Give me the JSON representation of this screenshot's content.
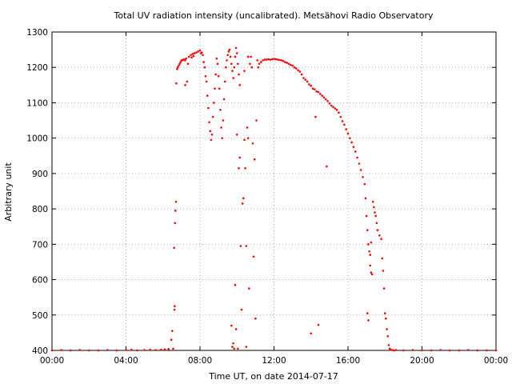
{
  "chart_data": {
    "type": "scatter",
    "title": "Total UV radiation intensity (uncalibrated). Metsähovi Radio Observatory",
    "xlabel": "Time UT, on date 2014-07-17",
    "ylabel": "Arbitrary unit",
    "xlim": [
      0,
      24
    ],
    "ylim": [
      400,
      1300
    ],
    "grid": true,
    "marker_color": "#ff0000",
    "x_ticks": [
      {
        "value": 0,
        "label": "00:00"
      },
      {
        "value": 4,
        "label": "04:00"
      },
      {
        "value": 8,
        "label": "08:00"
      },
      {
        "value": 12,
        "label": "12:00"
      },
      {
        "value": 16,
        "label": "16:00"
      },
      {
        "value": 20,
        "label": "20:00"
      },
      {
        "value": 24,
        "label": "00:00"
      }
    ],
    "y_ticks": [
      {
        "value": 400,
        "label": "400"
      },
      {
        "value": 500,
        "label": "500"
      },
      {
        "value": 600,
        "label": "600"
      },
      {
        "value": 700,
        "label": "700"
      },
      {
        "value": 800,
        "label": "800"
      },
      {
        "value": 900,
        "label": "900"
      },
      {
        "value": 1000,
        "label": "1000"
      },
      {
        "value": 1100,
        "label": "1100"
      },
      {
        "value": 1200,
        "label": "1200"
      },
      {
        "value": 1300,
        "label": "1300"
      }
    ],
    "x_unit": "hours UT",
    "points": [
      [
        0.0,
        400
      ],
      [
        0.5,
        401
      ],
      [
        1.0,
        400
      ],
      [
        1.5,
        401
      ],
      [
        2.0,
        400
      ],
      [
        2.5,
        400
      ],
      [
        3.0,
        401
      ],
      [
        3.5,
        400
      ],
      [
        4.0,
        401
      ],
      [
        4.3,
        402
      ],
      [
        4.6,
        400
      ],
      [
        5.0,
        401
      ],
      [
        5.3,
        402
      ],
      [
        5.6,
        401
      ],
      [
        5.9,
        402
      ],
      [
        6.1,
        403
      ],
      [
        6.3,
        404
      ],
      [
        6.45,
        430
      ],
      [
        6.5,
        455
      ],
      [
        6.55,
        405
      ],
      [
        6.6,
        690
      ],
      [
        6.65,
        760
      ],
      [
        6.67,
        795
      ],
      [
        6.7,
        820
      ],
      [
        6.62,
        515
      ],
      [
        6.63,
        525
      ],
      [
        6.72,
        1155
      ],
      [
        6.76,
        1195
      ],
      [
        6.8,
        1200
      ],
      [
        6.85,
        1205
      ],
      [
        6.9,
        1210
      ],
      [
        6.95,
        1215
      ],
      [
        7.0,
        1220
      ],
      [
        7.05,
        1220
      ],
      [
        7.1,
        1222
      ],
      [
        7.15,
        1222
      ],
      [
        7.2,
        1220
      ],
      [
        7.25,
        1225
      ],
      [
        7.3,
        1160
      ],
      [
        7.2,
        1150
      ],
      [
        7.35,
        1210
      ],
      [
        7.4,
        1230
      ],
      [
        7.5,
        1235
      ],
      [
        7.55,
        1228
      ],
      [
        7.6,
        1238
      ],
      [
        7.65,
        1232
      ],
      [
        7.7,
        1240
      ],
      [
        7.8,
        1242
      ],
      [
        7.9,
        1245
      ],
      [
        8.0,
        1248
      ],
      [
        8.05,
        1240
      ],
      [
        8.1,
        1242
      ],
      [
        8.15,
        1235
      ],
      [
        8.2,
        1215
      ],
      [
        8.25,
        1200
      ],
      [
        8.3,
        1175
      ],
      [
        8.35,
        1160
      ],
      [
        8.4,
        1120
      ],
      [
        8.45,
        1085
      ],
      [
        8.5,
        1045
      ],
      [
        8.55,
        1020
      ],
      [
        8.6,
        995
      ],
      [
        8.65,
        1010
      ],
      [
        8.7,
        1060
      ],
      [
        8.75,
        1100
      ],
      [
        8.8,
        1140
      ],
      [
        8.85,
        1180
      ],
      [
        8.9,
        1225
      ],
      [
        8.95,
        1210
      ],
      [
        9.0,
        1175
      ],
      [
        9.05,
        1140
      ],
      [
        9.1,
        1080
      ],
      [
        9.15,
        1030
      ],
      [
        9.2,
        1000
      ],
      [
        9.25,
        1050
      ],
      [
        9.3,
        1110
      ],
      [
        9.35,
        1160
      ],
      [
        9.4,
        1200
      ],
      [
        9.45,
        1220
      ],
      [
        9.5,
        1235
      ],
      [
        9.55,
        1245
      ],
      [
        9.6,
        1250
      ],
      [
        9.65,
        1230
      ],
      [
        9.7,
        1210
      ],
      [
        9.75,
        1190
      ],
      [
        9.8,
        1170
      ],
      [
        9.85,
        1200
      ],
      [
        9.9,
        1230
      ],
      [
        9.95,
        1255
      ],
      [
        10.0,
        1240
      ],
      [
        10.05,
        1210
      ],
      [
        10.1,
        1180
      ],
      [
        10.15,
        1150
      ],
      [
        9.7,
        470
      ],
      [
        9.75,
        410
      ],
      [
        9.8,
        420
      ],
      [
        9.85,
        405
      ],
      [
        9.9,
        585
      ],
      [
        9.95,
        460
      ],
      [
        10.0,
        1010
      ],
      [
        10.05,
        405
      ],
      [
        10.1,
        915
      ],
      [
        10.15,
        945
      ],
      [
        10.2,
        695
      ],
      [
        10.25,
        515
      ],
      [
        10.3,
        815
      ],
      [
        10.35,
        830
      ],
      [
        10.4,
        995
      ],
      [
        10.45,
        915
      ],
      [
        10.5,
        410
      ],
      [
        10.55,
        1030
      ],
      [
        10.6,
        1000
      ],
      [
        10.65,
        575
      ],
      [
        10.7,
        1210
      ],
      [
        10.75,
        1230
      ],
      [
        10.8,
        1200
      ],
      [
        10.85,
        985
      ],
      [
        10.9,
        665
      ],
      [
        10.95,
        940
      ],
      [
        11.0,
        490
      ],
      [
        11.05,
        1050
      ],
      [
        11.1,
        1220
      ],
      [
        11.15,
        1200
      ],
      [
        10.5,
        695
      ],
      [
        10.6,
        1230
      ],
      [
        10.4,
        1190
      ],
      [
        11.2,
        1210
      ],
      [
        11.3,
        1215
      ],
      [
        11.4,
        1220
      ],
      [
        11.5,
        1222
      ],
      [
        11.6,
        1222
      ],
      [
        11.7,
        1223
      ],
      [
        11.8,
        1222
      ],
      [
        11.9,
        1223
      ],
      [
        12.0,
        1224
      ],
      [
        12.1,
        1223
      ],
      [
        12.2,
        1222
      ],
      [
        12.3,
        1221
      ],
      [
        12.4,
        1220
      ],
      [
        12.5,
        1218
      ],
      [
        12.6,
        1215
      ],
      [
        12.7,
        1213
      ],
      [
        12.8,
        1210
      ],
      [
        12.9,
        1207
      ],
      [
        13.0,
        1205
      ],
      [
        13.1,
        1200
      ],
      [
        13.2,
        1197
      ],
      [
        13.3,
        1192
      ],
      [
        13.4,
        1188
      ],
      [
        13.5,
        1180
      ],
      [
        13.6,
        1170
      ],
      [
        13.7,
        1165
      ],
      [
        13.8,
        1160
      ],
      [
        13.9,
        1152
      ],
      [
        14.0,
        1148
      ],
      [
        14.1,
        1140
      ],
      [
        14.2,
        1138
      ],
      [
        14.3,
        1132
      ],
      [
        14.4,
        1130
      ],
      [
        14.5,
        1125
      ],
      [
        14.6,
        1120
      ],
      [
        14.7,
        1115
      ],
      [
        14.8,
        1110
      ],
      [
        14.9,
        1105
      ],
      [
        15.0,
        1098
      ],
      [
        15.1,
        1092
      ],
      [
        15.2,
        1088
      ],
      [
        15.3,
        1084
      ],
      [
        15.4,
        1080
      ],
      [
        15.5,
        1072
      ],
      [
        15.6,
        1060
      ],
      [
        15.7,
        1048
      ],
      [
        15.8,
        1038
      ],
      [
        15.9,
        1025
      ],
      [
        16.0,
        1013
      ],
      [
        16.1,
        1000
      ],
      [
        16.2,
        988
      ],
      [
        16.3,
        975
      ],
      [
        16.4,
        962
      ],
      [
        16.5,
        945
      ],
      [
        16.6,
        928
      ],
      [
        16.7,
        910
      ],
      [
        16.8,
        890
      ],
      [
        16.9,
        870
      ],
      [
        14.0,
        448
      ],
      [
        14.25,
        1060
      ],
      [
        14.4,
        472
      ],
      [
        14.85,
        920
      ],
      [
        16.95,
        830
      ],
      [
        17.0,
        780
      ],
      [
        17.05,
        740
      ],
      [
        17.1,
        700
      ],
      [
        17.15,
        680
      ],
      [
        17.2,
        640
      ],
      [
        17.25,
        620
      ],
      [
        17.3,
        615
      ],
      [
        17.05,
        505
      ],
      [
        17.1,
        485
      ],
      [
        17.2,
        670
      ],
      [
        17.25,
        705
      ],
      [
        17.35,
        820
      ],
      [
        17.4,
        805
      ],
      [
        17.45,
        790
      ],
      [
        17.5,
        780
      ],
      [
        17.55,
        760
      ],
      [
        17.6,
        740
      ],
      [
        17.7,
        725
      ],
      [
        17.8,
        715
      ],
      [
        17.85,
        660
      ],
      [
        17.9,
        625
      ],
      [
        17.95,
        575
      ],
      [
        18.0,
        505
      ],
      [
        18.05,
        490
      ],
      [
        18.1,
        460
      ],
      [
        18.15,
        440
      ],
      [
        18.2,
        415
      ],
      [
        18.25,
        405
      ],
      [
        18.3,
        402
      ],
      [
        18.4,
        401
      ],
      [
        18.5,
        400
      ],
      [
        18.6,
        401
      ],
      [
        19.0,
        400
      ],
      [
        19.5,
        401
      ],
      [
        20.0,
        400
      ],
      [
        20.5,
        400
      ],
      [
        21.0,
        401
      ],
      [
        21.5,
        400
      ],
      [
        22.0,
        400
      ],
      [
        22.5,
        401
      ],
      [
        23.0,
        400
      ],
      [
        23.5,
        400
      ],
      [
        24.0,
        400
      ]
    ]
  }
}
